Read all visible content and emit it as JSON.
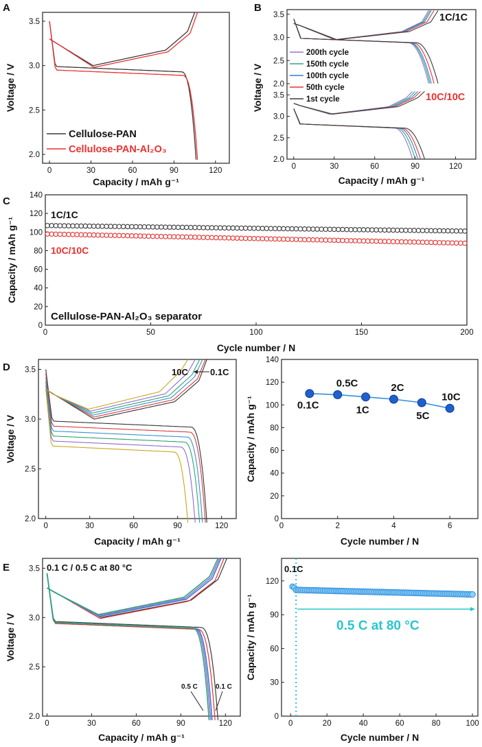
{
  "colors": {
    "black": "#3a3a3a",
    "red": "#e8312f",
    "purple": "#9a6fd0",
    "green": "#2aa87a",
    "blue": "#2f7fd3",
    "olive": "#c8a619",
    "sky": "#2f8fe0",
    "cyan": "#27c6cf"
  },
  "panels": {
    "A": {
      "letter": "A",
      "xlabel": "Capacity   /   mAh g⁻¹",
      "ylabel": "Voltage   /   V",
      "xticks": [
        "0",
        "30",
        "60",
        "90",
        "120"
      ],
      "yticks": [
        "2.0",
        "2.5",
        "3.0",
        "3.5"
      ],
      "legend": [
        "Cellulose-PAN",
        "Cellulose-PAN-Al₂O₃"
      ]
    },
    "B": {
      "letter": "B",
      "xlabel": "Capacity / mAh g⁻¹",
      "ylabel": "Voltage   /   V",
      "xticks": [
        "0",
        "30",
        "60",
        "90",
        "120"
      ],
      "yticks_top": [
        "2.0",
        "2.5",
        "3.0",
        "3.5"
      ],
      "yticks_bottom": [
        "2.0",
        "2.5",
        "3.0",
        "3.5"
      ],
      "label_top": "1C/1C",
      "label_bottom": "10C/10C",
      "legend": [
        "200th cycle",
        "150th cycle",
        "100th cycle",
        "50th cycle",
        "1st cycle"
      ]
    },
    "C": {
      "letter": "C",
      "xlabel": "Cycle number   /   N",
      "ylabel": "Capacity / mAh g⁻¹",
      "xticks": [
        "0",
        "50",
        "100",
        "150",
        "200"
      ],
      "yticks": [
        "0",
        "20",
        "40",
        "60",
        "80",
        "100",
        "120",
        "140"
      ],
      "label_top": "1C/1C",
      "label_bottom": "10C/10C",
      "caption": "Cellulose-PAN-Al₂O₃ separator"
    },
    "D_left": {
      "letter": "D",
      "xlabel": "Capacity   /   mAh g⁻¹",
      "ylabel": "Voltage   /   V",
      "xticks": [
        "0",
        "30",
        "60",
        "90",
        "120"
      ],
      "yticks": [
        "2.0",
        "2.5",
        "3.0",
        "3.5"
      ],
      "annot_left": "10C",
      "annot_right": "0.1C"
    },
    "D_right": {
      "xlabel": "Cycle number   /   N",
      "ylabel": "Capacity   /   mAh g⁻¹",
      "xticks": [
        "0",
        "2",
        "4",
        "6"
      ],
      "yticks": [
        "0",
        "20",
        "40",
        "60",
        "80",
        "100",
        "120",
        "140"
      ],
      "rate_labels": [
        "0.1C",
        "0.5C",
        "1C",
        "2C",
        "5C",
        "10C"
      ]
    },
    "E_left": {
      "letter": "E",
      "xlabel": "Capacity / mAh g⁻¹",
      "ylabel": "Voltage / V",
      "xticks": [
        "0",
        "30",
        "60",
        "90",
        "120"
      ],
      "yticks": [
        "2.0",
        "2.5",
        "3.0",
        "3.5"
      ],
      "title": "0.1 C / 0.5 C at 80 °C",
      "annot_a": "0.5 C",
      "annot_b": "0.1 C"
    },
    "E_right": {
      "xlabel": "Cycle number   /   N",
      "ylabel": "Capacity   /   mAh g⁻¹",
      "xticks": [
        "0",
        "20",
        "40",
        "60",
        "80",
        "100"
      ],
      "yticks": [
        "0",
        "30",
        "60",
        "90",
        "120"
      ],
      "annot_top": "0.1C",
      "annot_main": "0.5 C at 80 °C"
    }
  },
  "chart_data": [
    {
      "panel": "A",
      "type": "line",
      "xlim": [
        -5,
        130
      ],
      "ylim": [
        1.9,
        3.6
      ],
      "series": [
        {
          "name": "Cellulose-PAN",
          "discharge_capacity": 106,
          "charge_capacity": 105
        },
        {
          "name": "Cellulose-PAN-Al₂O₃",
          "discharge_capacity": 107,
          "charge_capacity": 107
        }
      ]
    },
    {
      "panel": "B",
      "type": "line",
      "xlim": [
        -5,
        135
      ],
      "subplots": [
        {
          "rate": "1C/1C",
          "ylim": [
            2.0,
            3.6
          ],
          "series": [
            {
              "name": "200th cycle",
              "capacity": 100
            },
            {
              "name": "150th cycle",
              "capacity": 101
            },
            {
              "name": "100th cycle",
              "capacity": 102
            },
            {
              "name": "50th cycle",
              "capacity": 104
            },
            {
              "name": "1st cycle",
              "capacity": 107
            }
          ]
        },
        {
          "rate": "10C/10C",
          "ylim": [
            2.0,
            3.6
          ],
          "series": [
            {
              "name": "200th cycle",
              "capacity": 88
            },
            {
              "name": "150th cycle",
              "capacity": 90
            },
            {
              "name": "100th cycle",
              "capacity": 92
            },
            {
              "name": "50th cycle",
              "capacity": 94
            },
            {
              "name": "1st cycle",
              "capacity": 97
            }
          ]
        }
      ]
    },
    {
      "panel": "C",
      "type": "scatter",
      "xlim": [
        0,
        200
      ],
      "ylim": [
        0,
        140
      ],
      "series": [
        {
          "name": "1C/1C",
          "start": 107,
          "end": 101
        },
        {
          "name": "10C/10C",
          "start": 98,
          "end": 88
        }
      ]
    },
    {
      "panel": "D-left",
      "type": "line",
      "xlim": [
        -5,
        130
      ],
      "ylim": [
        2.0,
        3.6
      ],
      "series": [
        {
          "name": "0.1C",
          "capacity": 110
        },
        {
          "name": "0.5C",
          "capacity": 109
        },
        {
          "name": "1C",
          "capacity": 107
        },
        {
          "name": "2C",
          "capacity": 105
        },
        {
          "name": "5C",
          "capacity": 102
        },
        {
          "name": "10C",
          "capacity": 97
        }
      ]
    },
    {
      "panel": "D-right",
      "type": "line",
      "xlim": [
        0,
        7
      ],
      "ylim": [
        0,
        140
      ],
      "x": [
        1,
        2,
        3,
        4,
        5,
        6
      ],
      "values": [
        110,
        109,
        107,
        105,
        102,
        97
      ],
      "labels": [
        "0.1C",
        "0.5C",
        "1C",
        "2C",
        "5C",
        "10C"
      ]
    },
    {
      "panel": "E-left",
      "type": "line",
      "xlim": [
        -3,
        130
      ],
      "ylim": [
        2.0,
        3.6
      ],
      "series": [
        {
          "name": "0.1 C",
          "capacity": 115
        },
        {
          "name": "0.5 C",
          "capacity": 110
        }
      ]
    },
    {
      "panel": "E-right",
      "type": "scatter",
      "xlim": [
        -5,
        103
      ],
      "ylim": [
        0,
        140
      ],
      "series": [
        {
          "name": "0.1C",
          "x": [
            1,
            2
          ],
          "values": [
            115,
            114
          ]
        },
        {
          "name": "0.5 C at 80 °C",
          "start": 112,
          "end": 108,
          "x_start": 3,
          "x_end": 100
        }
      ],
      "vline_x": 3
    }
  ]
}
